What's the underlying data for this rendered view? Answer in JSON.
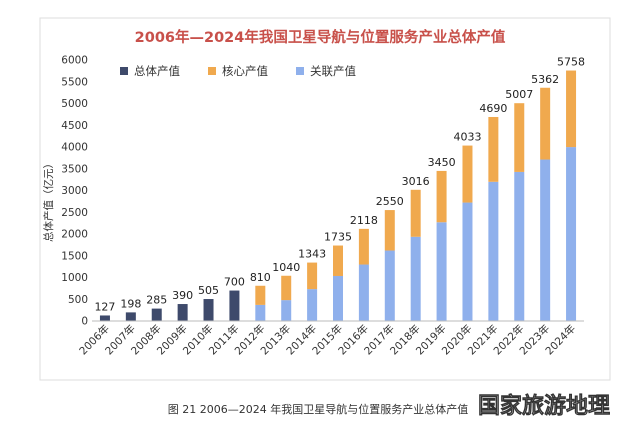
{
  "chart_data": {
    "type": "bar",
    "title": "2006年—2024年我国卫星导航与位置服务产业总体产值",
    "ylabel": "总体产值（亿元）",
    "ylim": [
      0,
      6000
    ],
    "yticks": [
      0,
      500,
      1000,
      1500,
      2000,
      2500,
      3000,
      3500,
      4000,
      4500,
      5000,
      5500,
      6000
    ],
    "categories": [
      "2006年",
      "2007年",
      "2008年",
      "2009年",
      "2010年",
      "2011年",
      "2012年",
      "2013年",
      "2014年",
      "2015年",
      "2016年",
      "2017年",
      "2018年",
      "2019年",
      "2020年",
      "2021年",
      "2022年",
      "2023年",
      "2024年"
    ],
    "totals": [
      127,
      198,
      285,
      390,
      505,
      700,
      810,
      1040,
      1343,
      1735,
      2118,
      2550,
      3016,
      3450,
      4033,
      4690,
      5007,
      5362,
      5758
    ],
    "series": [
      {
        "name": "总体产值",
        "color": "#3e4a6b",
        "values": [
          127,
          198,
          285,
          390,
          505,
          700,
          null,
          null,
          null,
          null,
          null,
          null,
          null,
          null,
          null,
          null,
          null,
          null,
          null
        ]
      },
      {
        "name": "核心产值",
        "color": "#f0a94e",
        "values": [
          null,
          null,
          null,
          null,
          null,
          null,
          440,
          560,
          610,
          700,
          820,
          930,
          1080,
          1180,
          1310,
          1490,
          1580,
          1650,
          1760
        ]
      },
      {
        "name": "关联产值",
        "color": "#8fb0ec",
        "values": [
          null,
          null,
          null,
          null,
          null,
          null,
          370,
          480,
          733,
          1035,
          1298,
          1620,
          1936,
          2270,
          2723,
          3200,
          3427,
          3712,
          3998
        ]
      }
    ],
    "legend_position": "top-left",
    "grid": false
  },
  "caption": "图 21  2006—2024 年我国卫星导航与位置服务产业总体产值",
  "watermark": "国家旅游地理"
}
